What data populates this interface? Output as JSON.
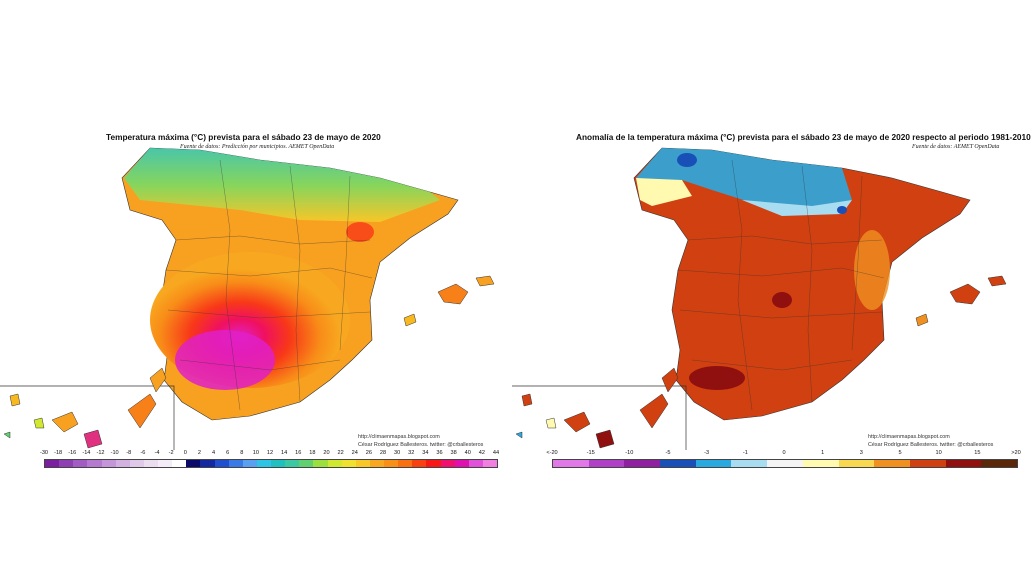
{
  "left_map": {
    "title": "Temperatura máxima (°C) prevista para el sábado 23 de mayo de 2020",
    "source": "Fuente de datos: Predicción por municipios. AEMET OpenData",
    "credit_url": "http://climaenmapas.blogspot.com",
    "credit_author": "César Rodríguez Ballesteros. twitter: @crballesteros",
    "legend": {
      "labels": [
        "-30",
        "-18",
        "-16",
        "-14",
        "-12",
        "-10",
        "-8",
        "-6",
        "-4",
        "-2",
        "0",
        "2",
        "4",
        "6",
        "8",
        "10",
        "12",
        "14",
        "16",
        "18",
        "20",
        "22",
        "24",
        "26",
        "28",
        "30",
        "32",
        "34",
        "36",
        "38",
        "40",
        "42",
        "44"
      ],
      "colors": [
        "#7a1fa0",
        "#8e3fb4",
        "#a35cc3",
        "#b57acf",
        "#c496d9",
        "#d2b0e0",
        "#dfc8e8",
        "#ebdcf0",
        "#f4ecf6",
        "#ffffff",
        "#0a0a6a",
        "#1428a0",
        "#2050d0",
        "#3a7ae6",
        "#5aa0f0",
        "#2ec4e6",
        "#20c0c0",
        "#3cc8a0",
        "#60d070",
        "#9ce040",
        "#d0e830",
        "#f0e030",
        "#f8c828",
        "#f8a820",
        "#f89018",
        "#f87010",
        "#f84010",
        "#f81818",
        "#f01070",
        "#e010b0",
        "#e050d8",
        "#f080e0"
      ]
    }
  },
  "right_map": {
    "title": "Anomalía de la temperatura máxima (°C) prevista para el sábado 23 de mayo de 2020 respecto al periodo 1981-2010",
    "source": "Fuente de datos: AEMET OpenData",
    "credit_url": "http://climaenmapas.blogspot.com",
    "credit_author": "César Rodríguez Ballesteros. twitter: @crballesteros",
    "legend": {
      "labels": [
        "<-20",
        "-15",
        "-10",
        "-5",
        "-3",
        "-1",
        "0",
        "1",
        "3",
        "5",
        "10",
        "15",
        ">20"
      ],
      "colors": [
        "#e078e8",
        "#b040c8",
        "#9020a0",
        "#1850b8",
        "#2aa8e0",
        "#a8dcf0",
        "#f4f4f4",
        "#fffab0",
        "#f8d850",
        "#f09020",
        "#d04010",
        "#901010",
        "#5a2808"
      ]
    }
  }
}
